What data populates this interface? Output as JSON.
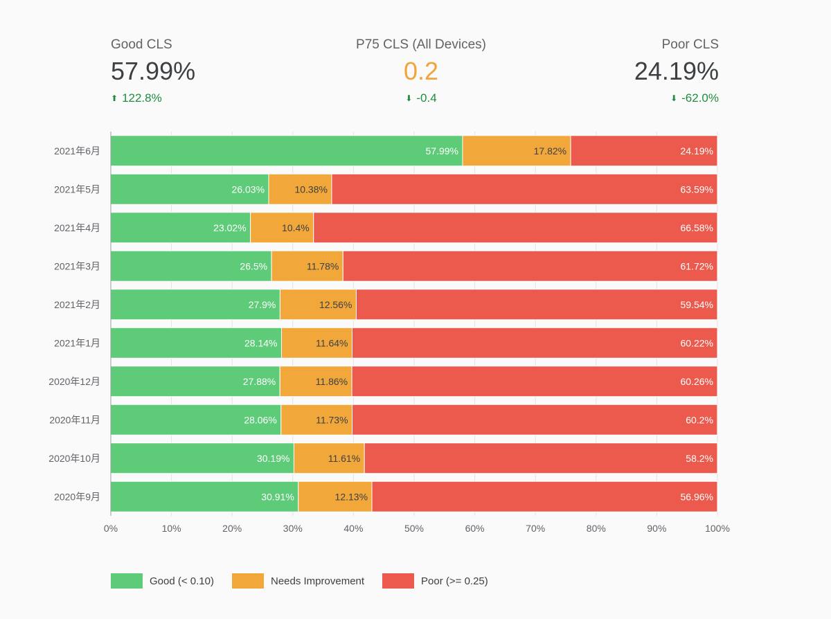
{
  "scorecards": {
    "good": {
      "label": "Good CLS",
      "value": "57.99%",
      "delta": "122.8%",
      "delta_icon": "arrow-up-icon"
    },
    "p75": {
      "label": "P75 CLS (All Devices)",
      "value": "0.2",
      "delta": "-0.4",
      "delta_icon": "arrow-down-icon"
    },
    "poor": {
      "label": "Poor CLS",
      "value": "24.19%",
      "delta": "-62.0%",
      "delta_icon": "arrow-down-icon"
    }
  },
  "colors": {
    "good": "#5ecb78",
    "needs_improvement": "#f2a73b",
    "poor": "#eb5a4d",
    "delta_positive": "#1e8e3e",
    "accent_value": "#f2a33a"
  },
  "chart_data": {
    "type": "bar",
    "orientation": "horizontal",
    "stacked": true,
    "categories": [
      "2021年6月",
      "2021年5月",
      "2021年4月",
      "2021年3月",
      "2021年2月",
      "2021年1月",
      "2020年12月",
      "2020年11月",
      "2020年10月",
      "2020年9月"
    ],
    "series": [
      {
        "name": "Good (< 0.10)",
        "color": "#5ecb78",
        "values": [
          57.99,
          26.03,
          23.02,
          26.5,
          27.9,
          28.14,
          27.88,
          28.06,
          30.19,
          30.91
        ],
        "labels": [
          "57.99%",
          "26.03%",
          "23.02%",
          "26.5%",
          "27.9%",
          "28.14%",
          "27.88%",
          "28.06%",
          "30.19%",
          "30.91%"
        ]
      },
      {
        "name": "Needs Improvement",
        "color": "#f2a73b",
        "values": [
          17.82,
          10.38,
          10.4,
          11.78,
          12.56,
          11.64,
          11.86,
          11.73,
          11.61,
          12.13
        ],
        "labels": [
          "17.82%",
          "10.38%",
          "10.4%",
          "11.78%",
          "12.56%",
          "11.64%",
          "11.86%",
          "11.73%",
          "11.61%",
          "12.13%"
        ]
      },
      {
        "name": "Poor (>= 0.25)",
        "color": "#eb5a4d",
        "values": [
          24.19,
          63.59,
          66.58,
          61.72,
          59.54,
          60.22,
          60.26,
          60.2,
          58.2,
          56.96
        ],
        "labels": [
          "24.19%",
          "63.59%",
          "66.58%",
          "61.72%",
          "59.54%",
          "60.22%",
          "60.26%",
          "60.2%",
          "58.2%",
          "56.96%"
        ]
      }
    ],
    "xlim": [
      0,
      100
    ],
    "xticks": [
      0,
      10,
      20,
      30,
      40,
      50,
      60,
      70,
      80,
      90,
      100
    ],
    "xtick_labels": [
      "0%",
      "10%",
      "20%",
      "30%",
      "40%",
      "50%",
      "60%",
      "70%",
      "80%",
      "90%",
      "100%"
    ],
    "grid": "vertical",
    "legend_position": "bottom-left",
    "title": "",
    "xlabel": "",
    "ylabel": ""
  }
}
